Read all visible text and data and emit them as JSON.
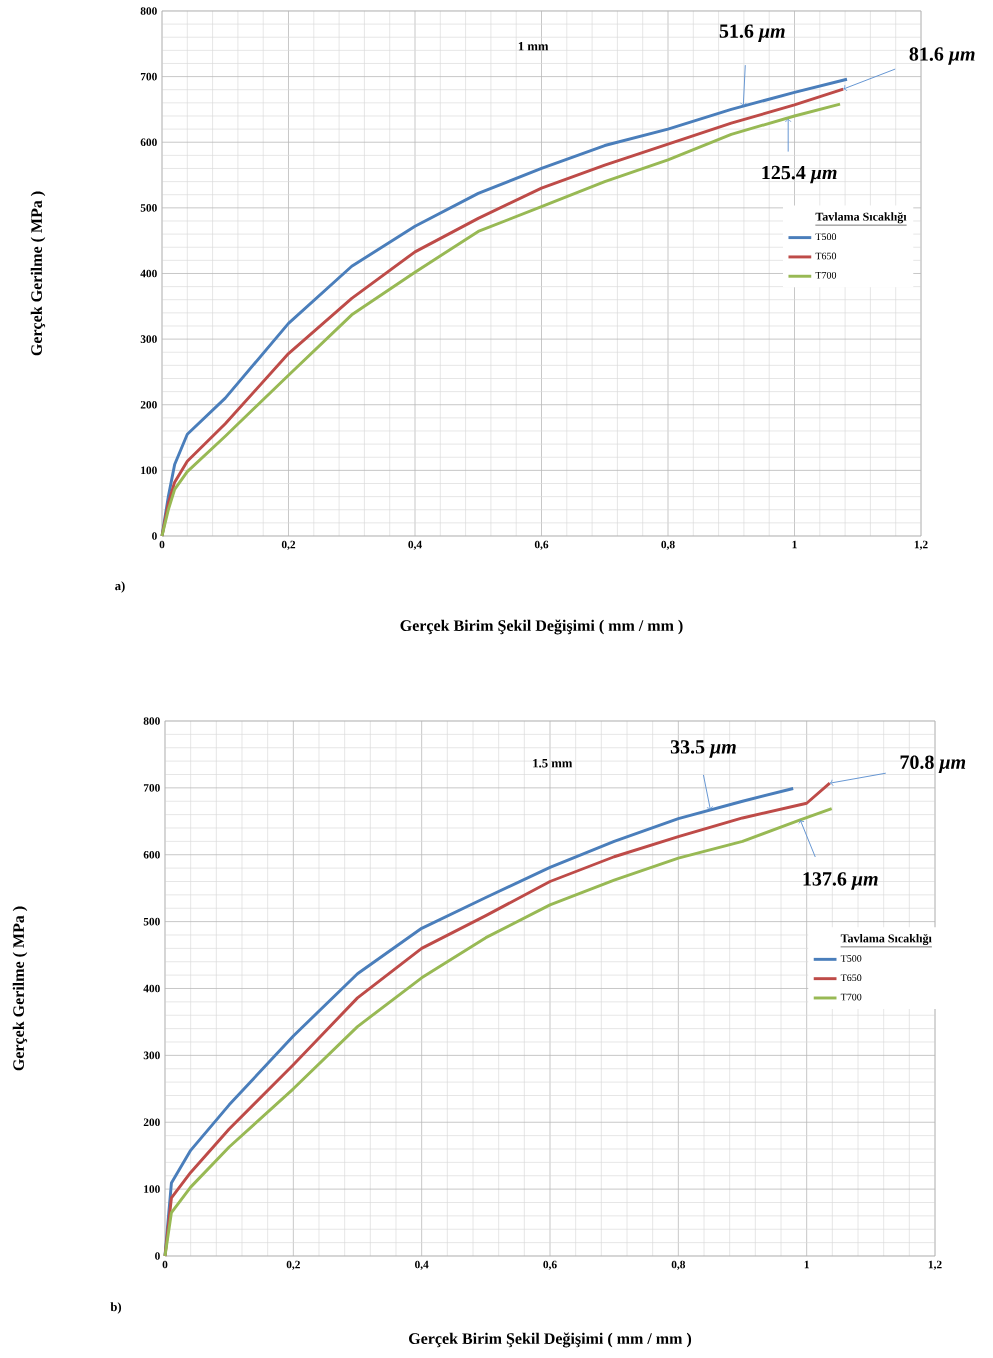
{
  "chart_data": [
    {
      "type": "line",
      "xlabel": "Gerçek Birim Şekil Değişimi ( mm / mm )",
      "ylabel": "Gerçek Gerilme ( MPa )",
      "legend_title": "Tavlama Sıcaklığı",
      "xlim": [
        0,
        1.2
      ],
      "ylim": [
        0,
        800
      ],
      "xticks": [
        0,
        {
          "value": 0.2,
          "label": "0,2"
        },
        {
          "value": 0.4,
          "label": "0,4"
        },
        {
          "value": 0.6,
          "label": "0,6"
        },
        {
          "value": 0.8,
          "label": "0,8"
        },
        1,
        {
          "value": 1.2,
          "label": "1,2"
        }
      ],
      "yticks": [
        0,
        100,
        200,
        300,
        400,
        500,
        600,
        700,
        800
      ],
      "grid": true,
      "legend": "right",
      "marker": "none",
      "line_style": "solid",
      "series": [
        {
          "name": "T500",
          "color": "#4a7ebb",
          "x": [
            0,
            0.01,
            0.02,
            0.04,
            0.1,
            0.2,
            0.3,
            0.4,
            0.5,
            0.6,
            0.7,
            0.8,
            0.9,
            1.0,
            1.083
          ],
          "values": [
            0,
            60,
            109,
            155,
            210,
            324,
            411,
            472,
            522,
            560,
            595,
            620,
            650,
            676,
            696
          ]
        },
        {
          "name": "T650",
          "color": "#be4b48",
          "x": [
            0,
            0.01,
            0.02,
            0.04,
            0.1,
            0.2,
            0.3,
            0.4,
            0.5,
            0.6,
            0.7,
            0.8,
            0.9,
            1.0,
            1.077
          ],
          "values": [
            0,
            50,
            82,
            114,
            171,
            278,
            362,
            433,
            484,
            530,
            565,
            597,
            629,
            657,
            681
          ]
        },
        {
          "name": "T700",
          "color": "#98b954",
          "x": [
            0,
            0.01,
            0.02,
            0.04,
            0.1,
            0.2,
            0.3,
            0.4,
            0.5,
            0.6,
            0.7,
            0.8,
            0.9,
            1.0,
            1.072
          ],
          "values": [
            0,
            40,
            71,
            98,
            152,
            245,
            337,
            402,
            464,
            502,
            540,
            573,
            612,
            640,
            658
          ]
        }
      ],
      "annotations": [
        "1 mm",
        "a)",
        {
          "text": "51.6 *μm*",
          "x": 0.919,
          "y": 655
        },
        {
          "text": "81.6 *μm*",
          "x": 1.077,
          "y": 681
        },
        {
          "text": "125.4 *μm*",
          "x": 0.99,
          "y": 636
        }
      ]
    },
    {
      "type": "line",
      "xlabel": "Gerçek Birim Şekil Değişimi ( mm / mm )",
      "ylabel": "Gerçek Gerilme ( MPa )",
      "legend_title": "Tavlama Sıcaklığı",
      "xlim": [
        0,
        1.2
      ],
      "ylim": [
        0,
        800
      ],
      "xticks": [
        0,
        {
          "value": 0.2,
          "label": "0,2"
        },
        {
          "value": 0.4,
          "label": "0,4"
        },
        {
          "value": 0.6,
          "label": "0,6"
        },
        {
          "value": 0.8,
          "label": "0,8"
        },
        1,
        {
          "value": 1.2,
          "label": "1,2"
        }
      ],
      "yticks": [
        0,
        100,
        200,
        300,
        400,
        500,
        600,
        700,
        800
      ],
      "grid": true,
      "legend": "right",
      "marker": "none",
      "line_style": "solid",
      "series": [
        {
          "name": "T500",
          "color": "#4a7ebb",
          "x": [
            0,
            0.01,
            0.04,
            0.1,
            0.2,
            0.3,
            0.4,
            0.5,
            0.6,
            0.7,
            0.8,
            0.9,
            0.979
          ],
          "values": [
            0,
            109,
            158,
            226,
            329,
            422,
            490,
            536,
            581,
            620,
            654,
            680,
            699
          ]
        },
        {
          "name": "T650",
          "color": "#be4b48",
          "x": [
            0,
            0.01,
            0.04,
            0.1,
            0.2,
            0.3,
            0.4,
            0.5,
            0.6,
            0.7,
            0.8,
            0.9,
            1.0,
            1.036
          ],
          "values": [
            0,
            87,
            125,
            190,
            286,
            386,
            460,
            509,
            560,
            597,
            627,
            655,
            677,
            707
          ]
        },
        {
          "name": "T700",
          "color": "#98b954",
          "x": [
            0,
            0.01,
            0.04,
            0.1,
            0.2,
            0.3,
            0.4,
            0.5,
            0.6,
            0.7,
            0.8,
            0.9,
            0.99,
            1.039
          ],
          "values": [
            0,
            65,
            103,
            163,
            250,
            343,
            416,
            476,
            525,
            562,
            595,
            620,
            652,
            669
          ]
        }
      ],
      "annotations": [
        "1.5 mm",
        "b)",
        {
          "text": "33.5 *μm*",
          "x": 0.85,
          "y": 667
        },
        {
          "text": "70.8 *μm*",
          "x": 1.036,
          "y": 707
        },
        {
          "text": "137.6 *μm*",
          "x": 0.99,
          "y": 652
        }
      ]
    }
  ]
}
